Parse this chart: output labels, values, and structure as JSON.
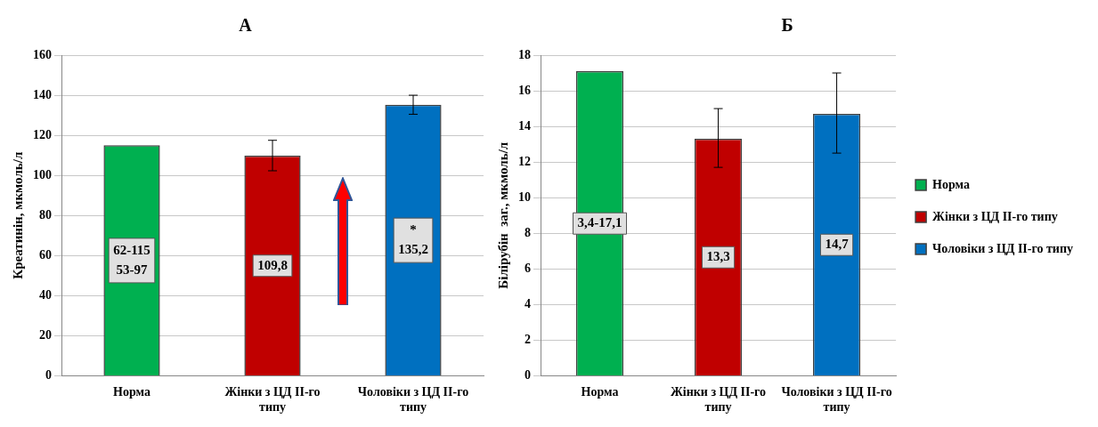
{
  "chart_data": [
    {
      "type": "bar",
      "title": "А",
      "ylabel": "Креатинін, мкмоль/л",
      "categories": [
        "Норма",
        "Жінки з ЦД ІІ-го типу",
        "Чоловіки з ЦД ІІ-го типу"
      ],
      "values": [
        115,
        109.8,
        135.2
      ],
      "colors": [
        "#00b050",
        "#c00000",
        "#0070c0"
      ],
      "errors": [
        null,
        [
          102.3,
          117.5
        ],
        [
          130.5,
          140
        ]
      ],
      "value_labels": [
        "62-115\n53-97",
        "109,8",
        "*\n135,2"
      ],
      "ylim": [
        0,
        160
      ],
      "yticks": [
        0,
        20,
        40,
        60,
        80,
        100,
        120,
        140,
        160
      ],
      "grid": "y",
      "legend": false
    },
    {
      "type": "bar",
      "title": "Б",
      "ylabel": "Білірубін  заг., мкмоль/л",
      "categories": [
        "Норма",
        "Жінки з ЦД ІІ-го типу",
        "Чоловіки з ЦД ІІ-го типу"
      ],
      "stacked": true,
      "series": [
        {
          "name": "Норма",
          "color": "#00b050",
          "values": [
            17.1,
            null,
            null
          ],
          "value_labels": [
            "3,4-17,1",
            null,
            null
          ]
        },
        {
          "name": "Жінки з ЦД ІІ-го типу",
          "color": "#c00000",
          "values": [
            null,
            13.3,
            null
          ],
          "errors": [
            null,
            [
              11.7,
              15
            ],
            null
          ],
          "value_labels": [
            null,
            "13,3",
            null
          ]
        },
        {
          "name": "Чоловіки з ЦД ІІ-го типу",
          "color": "#0070c0",
          "values": [
            null,
            null,
            14.7
          ],
          "errors": [
            null,
            null,
            [
              12.5,
              17
            ]
          ],
          "value_labels": [
            null,
            null,
            "14,7"
          ]
        }
      ],
      "ylim": [
        0,
        18
      ],
      "yticks": [
        0,
        2,
        4,
        6,
        8,
        10,
        12,
        14,
        16,
        18
      ],
      "grid": "y",
      "legend": "right"
    }
  ]
}
